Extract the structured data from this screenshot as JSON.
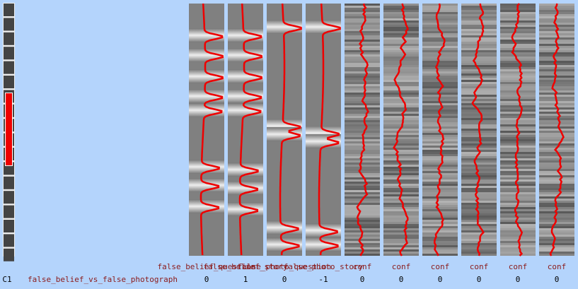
{
  "columns": [
    {
      "label": "false_belief_question",
      "weight": 0
    },
    {
      "label": "false_belief_story",
      "weight": 1
    },
    {
      "label": "false_photo_question",
      "weight": 0
    },
    {
      "label": "false_photo_story",
      "weight": -1
    },
    {
      "label": "conf",
      "weight": 0
    },
    {
      "label": "conf",
      "weight": 0
    },
    {
      "label": "conf",
      "weight": 0
    },
    {
      "label": "conf",
      "weight": 0
    },
    {
      "label": "conf",
      "weight": 0
    },
    {
      "label": "conf",
      "weight": 0
    }
  ],
  "contrast": {
    "id": "C1",
    "name": "false_belief_vs_false_photograph"
  }
}
